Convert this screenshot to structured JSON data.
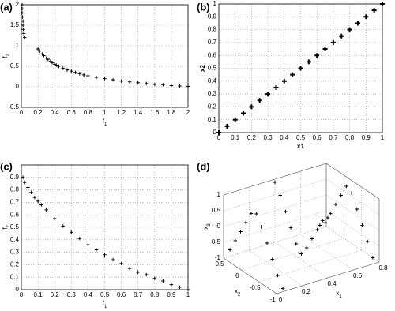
{
  "chart_data": [
    {
      "type": "scatter",
      "panel_label": "(a)",
      "x_label": "f1",
      "y_label": "f2",
      "subscript_labels": true,
      "grid": true,
      "color": "#000000",
      "x": [
        0.01,
        0.01,
        0.01,
        0.015,
        0.02,
        0.02,
        0.025,
        0.03,
        0.04,
        0.2,
        0.22,
        0.25,
        0.27,
        0.3,
        0.32,
        0.35,
        0.37,
        0.4,
        0.42,
        0.45,
        0.5,
        0.55,
        0.6,
        0.65,
        0.7,
        0.75,
        0.8,
        0.9,
        1.0,
        1.1,
        1.2,
        1.3,
        1.4,
        1.5,
        1.6,
        1.7,
        1.8,
        1.9,
        2.0
      ],
      "values": [
        2.0,
        1.9,
        1.8,
        1.7,
        1.6,
        1.5,
        1.4,
        1.3,
        1.2,
        0.92,
        0.87,
        0.8,
        0.76,
        0.7,
        0.67,
        0.62,
        0.59,
        0.55,
        0.53,
        0.5,
        0.45,
        0.41,
        0.38,
        0.35,
        0.32,
        0.29,
        0.27,
        0.23,
        0.2,
        0.17,
        0.14,
        0.12,
        0.1,
        0.08,
        0.06,
        0.05,
        0.03,
        0.02,
        0.01
      ],
      "xlim": [
        0,
        2
      ],
      "xticks": [
        0,
        0.2,
        0.4,
        0.6,
        0.8,
        1,
        1.2,
        1.4,
        1.6,
        1.8,
        2
      ],
      "ylim": [
        -0.5,
        2
      ],
      "yticks": [
        -0.5,
        0,
        0.5,
        1,
        1.5,
        2
      ]
    },
    {
      "type": "scatter",
      "panel_label": "(b)",
      "x_label": "x1",
      "y_label": "x2",
      "subscript_labels": false,
      "grid": true,
      "color": "#000000",
      "x": [
        0,
        0.05,
        0.1,
        0.15,
        0.2,
        0.25,
        0.3,
        0.35,
        0.4,
        0.45,
        0.5,
        0.55,
        0.6,
        0.65,
        0.7,
        0.75,
        0.8,
        0.85,
        0.9,
        0.95,
        1
      ],
      "values": [
        0,
        0.05,
        0.1,
        0.15,
        0.2,
        0.25,
        0.3,
        0.35,
        0.4,
        0.45,
        0.5,
        0.55,
        0.6,
        0.65,
        0.7,
        0.75,
        0.8,
        0.85,
        0.9,
        0.95,
        1
      ],
      "xlim": [
        0,
        1
      ],
      "xticks": [
        0,
        0.1,
        0.2,
        0.3,
        0.4,
        0.5,
        0.6,
        0.7,
        0.8,
        0.9,
        1
      ],
      "ylim": [
        0,
        1
      ],
      "yticks": [
        0,
        0.1,
        0.2,
        0.3,
        0.4,
        0.5,
        0.6,
        0.7,
        0.8,
        0.9,
        1
      ]
    },
    {
      "type": "scatter",
      "panel_label": "(c)",
      "x_label": "f1",
      "y_label": "f2",
      "subscript_labels": true,
      "grid": true,
      "color": "#000000",
      "x": [
        0.01,
        0.02,
        0.04,
        0.06,
        0.08,
        0.1,
        0.12,
        0.15,
        0.2,
        0.25,
        0.3,
        0.35,
        0.4,
        0.45,
        0.5,
        0.55,
        0.6,
        0.65,
        0.7,
        0.75,
        0.8,
        0.85,
        0.9,
        0.95,
        1.0
      ],
      "values": [
        0.9,
        0.86,
        0.82,
        0.78,
        0.74,
        0.71,
        0.68,
        0.64,
        0.57,
        0.51,
        0.46,
        0.41,
        0.36,
        0.32,
        0.28,
        0.24,
        0.21,
        0.17,
        0.14,
        0.12,
        0.09,
        0.07,
        0.04,
        0.02,
        0.0
      ],
      "xlim": [
        0,
        1
      ],
      "xticks": [
        0,
        0.1,
        0.2,
        0.3,
        0.4,
        0.5,
        0.6,
        0.7,
        0.8,
        0.9,
        1
      ],
      "ylim": [
        0,
        1
      ],
      "yticks": [
        0,
        0.1,
        0.2,
        0.3,
        0.4,
        0.5,
        0.6,
        0.7,
        0.8,
        0.9
      ]
    },
    {
      "type": "scatter3d",
      "panel_label": "(d)",
      "x_label": "x1",
      "y_label": "x2",
      "z_label": "x3",
      "subscript_labels": true,
      "grid": true,
      "color": "#000000",
      "x": [
        0.05,
        0.05,
        0.05,
        0.05,
        0.05,
        0.05,
        0.05,
        0.05,
        0.05,
        0.05,
        0.05,
        0.4,
        0.4,
        0.4,
        0.4,
        0.4,
        0.4,
        0.4,
        0.4,
        0.4,
        0.4,
        0.4,
        0.75,
        0.75,
        0.75,
        0.75,
        0.75,
        0.75,
        0.75,
        0.75,
        0.75,
        0.75,
        0.75
      ],
      "y": [
        -1,
        -0.85,
        -0.7,
        -0.55,
        -0.4,
        -0.25,
        -0.1,
        0.05,
        0.2,
        0.35,
        0.5,
        -1,
        -0.85,
        -0.7,
        -0.55,
        -0.4,
        -0.25,
        -0.1,
        0.05,
        0.2,
        0.35,
        0.5,
        -1,
        -0.85,
        -0.7,
        -0.55,
        -0.4,
        -0.25,
        -0.1,
        0.05,
        0.2,
        0.35,
        0.5
      ],
      "z": [
        -0.9,
        -0.6,
        -0.2,
        0.2,
        0.6,
        0.9,
        0.8,
        0.4,
        0,
        -0.4,
        -0.8,
        0.9,
        0.7,
        0.3,
        -0.1,
        -0.5,
        -0.8,
        -0.6,
        -0.2,
        0.2,
        0.6,
        0.9,
        -0.8,
        -0.4,
        0,
        0.4,
        0.8,
        0.9,
        0.5,
        0.1,
        -0.3,
        -0.7,
        -0.9
      ],
      "xlim": [
        0,
        0.8
      ],
      "xticks": [
        0,
        0.2,
        0.4,
        0.6,
        0.8
      ],
      "ylim": [
        -1,
        0.5
      ],
      "yticks": [
        -1,
        -0.5,
        0,
        0.5
      ],
      "zlim": [
        -1,
        1
      ],
      "zticks": [
        -1,
        -0.5,
        0,
        0.5,
        1
      ]
    }
  ]
}
